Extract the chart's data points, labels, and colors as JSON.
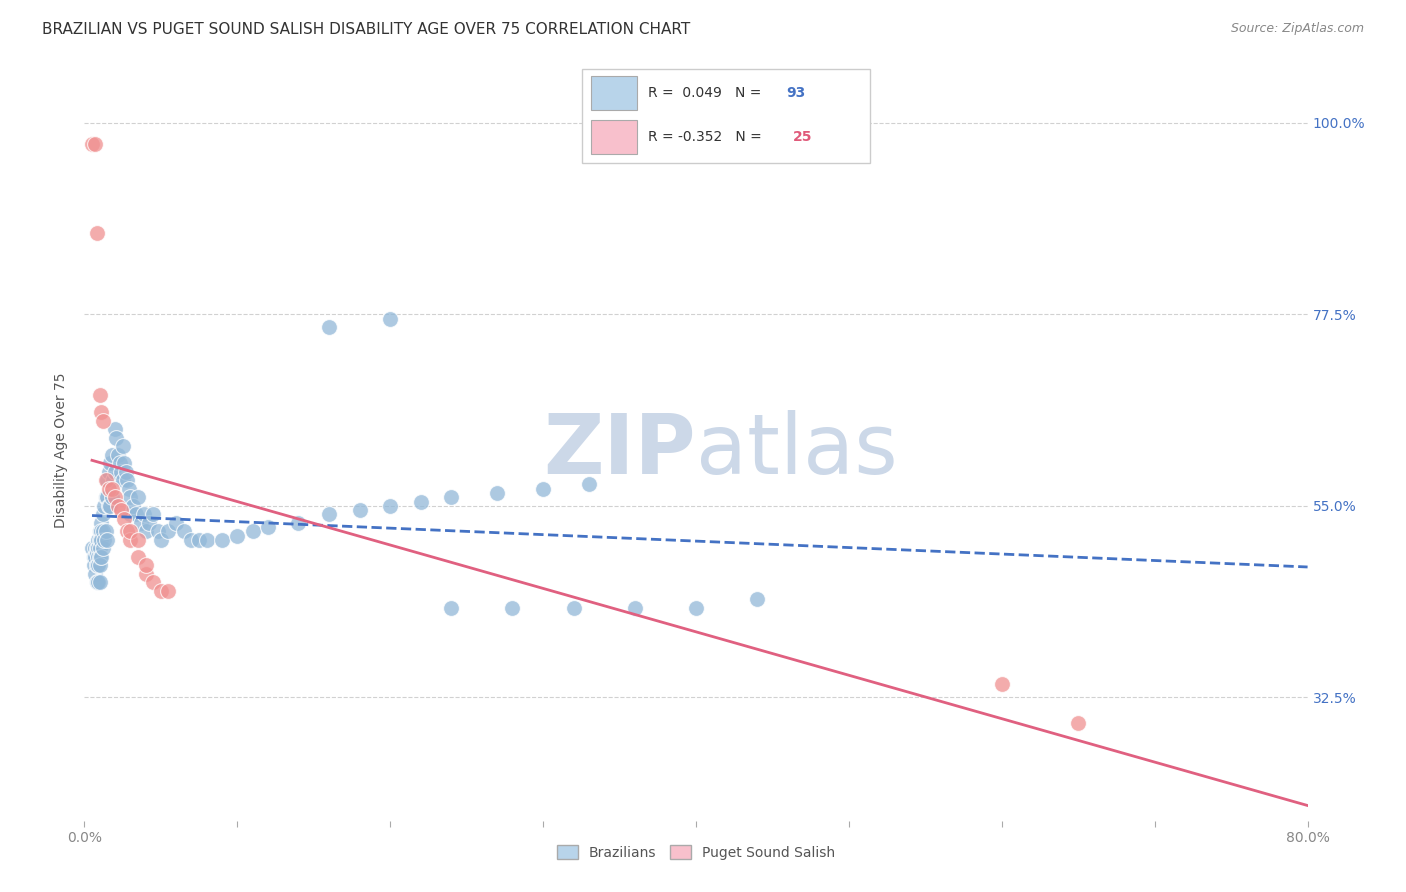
{
  "title": "BRAZILIAN VS PUGET SOUND SALISH DISABILITY AGE OVER 75 CORRELATION CHART",
  "source": "Source: ZipAtlas.com",
  "ylabel": "Disability Age Over 75",
  "ytick_labels": [
    "100.0%",
    "77.5%",
    "55.0%",
    "32.5%"
  ],
  "ytick_positions": [
    1.0,
    0.775,
    0.55,
    0.325
  ],
  "xlim": [
    0.0,
    0.8
  ],
  "ylim": [
    0.18,
    1.05
  ],
  "blue_color": "#92b8d8",
  "pink_color": "#f09090",
  "blue_line_color": "#4472c4",
  "pink_line_color": "#e06080",
  "watermark": "ZIPatlas",
  "watermark_color": "#ccd8e8",
  "blue_R": 0.049,
  "blue_N": 93,
  "pink_R": -0.352,
  "pink_N": 25,
  "grid_color": "#cccccc",
  "title_fontsize": 11,
  "axis_label_fontsize": 10,
  "tick_fontsize": 10,
  "source_fontsize": 9,
  "legend_box_color_blue": "#b8d4ea",
  "legend_box_color_pink": "#f8c0cc",
  "blue_scatter_x": [
    0.005,
    0.006,
    0.006,
    0.007,
    0.007,
    0.007,
    0.008,
    0.008,
    0.008,
    0.008,
    0.009,
    0.009,
    0.009,
    0.009,
    0.009,
    0.01,
    0.01,
    0.01,
    0.01,
    0.01,
    0.01,
    0.011,
    0.011,
    0.011,
    0.011,
    0.012,
    0.012,
    0.012,
    0.013,
    0.013,
    0.014,
    0.014,
    0.015,
    0.015,
    0.015,
    0.016,
    0.016,
    0.017,
    0.017,
    0.018,
    0.018,
    0.019,
    0.02,
    0.02,
    0.021,
    0.022,
    0.023,
    0.024,
    0.025,
    0.025,
    0.026,
    0.027,
    0.028,
    0.029,
    0.03,
    0.03,
    0.032,
    0.034,
    0.035,
    0.037,
    0.039,
    0.04,
    0.042,
    0.045,
    0.048,
    0.05,
    0.055,
    0.06,
    0.065,
    0.07,
    0.075,
    0.08,
    0.09,
    0.1,
    0.11,
    0.12,
    0.14,
    0.16,
    0.18,
    0.2,
    0.22,
    0.24,
    0.27,
    0.3,
    0.33,
    0.16,
    0.2,
    0.24,
    0.28,
    0.32,
    0.36,
    0.4,
    0.44
  ],
  "blue_scatter_y": [
    0.5,
    0.49,
    0.48,
    0.5,
    0.49,
    0.47,
    0.5,
    0.495,
    0.48,
    0.46,
    0.51,
    0.5,
    0.49,
    0.48,
    0.46,
    0.52,
    0.51,
    0.5,
    0.49,
    0.48,
    0.46,
    0.53,
    0.52,
    0.51,
    0.49,
    0.54,
    0.52,
    0.5,
    0.55,
    0.51,
    0.56,
    0.52,
    0.58,
    0.56,
    0.51,
    0.59,
    0.55,
    0.6,
    0.55,
    0.61,
    0.56,
    0.58,
    0.64,
    0.59,
    0.63,
    0.61,
    0.6,
    0.59,
    0.62,
    0.58,
    0.6,
    0.59,
    0.58,
    0.57,
    0.56,
    0.54,
    0.55,
    0.54,
    0.56,
    0.53,
    0.54,
    0.52,
    0.53,
    0.54,
    0.52,
    0.51,
    0.52,
    0.53,
    0.52,
    0.51,
    0.51,
    0.51,
    0.51,
    0.515,
    0.52,
    0.525,
    0.53,
    0.54,
    0.545,
    0.55,
    0.555,
    0.56,
    0.565,
    0.57,
    0.575,
    0.76,
    0.77,
    0.43,
    0.43,
    0.43,
    0.43,
    0.43,
    0.44
  ],
  "pink_scatter_x": [
    0.005,
    0.007,
    0.008,
    0.01,
    0.011,
    0.012,
    0.014,
    0.016,
    0.018,
    0.02,
    0.022,
    0.024,
    0.026,
    0.028,
    0.03,
    0.035,
    0.04,
    0.045,
    0.05,
    0.055,
    0.03,
    0.035,
    0.04,
    0.6,
    0.65
  ],
  "pink_scatter_y": [
    0.975,
    0.975,
    0.87,
    0.68,
    0.66,
    0.65,
    0.58,
    0.57,
    0.57,
    0.56,
    0.55,
    0.545,
    0.535,
    0.52,
    0.51,
    0.49,
    0.47,
    0.46,
    0.45,
    0.45,
    0.52,
    0.51,
    0.48,
    0.34,
    0.295
  ]
}
